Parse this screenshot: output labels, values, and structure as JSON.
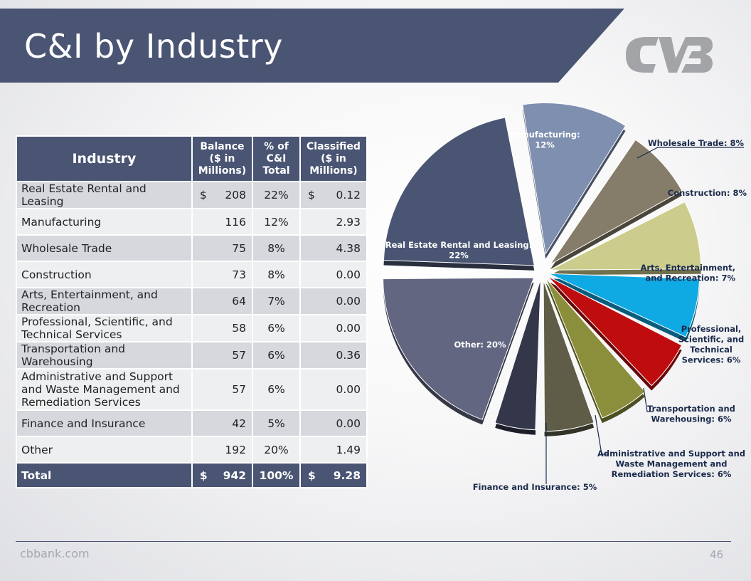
{
  "slide": {
    "title": "C&I by Industry",
    "footer_site": "cbbank.com",
    "page_number": "46",
    "colors": {
      "banner": "#4a5573",
      "logo": "#a3a4a8"
    }
  },
  "table": {
    "headers": {
      "industry": "Industry",
      "balance": [
        "Balance",
        "($ in",
        "Millions)"
      ],
      "pct": [
        "% of",
        "C&I",
        "Total"
      ],
      "classified": [
        "Classified",
        "($ in",
        "Millions)"
      ]
    },
    "rows": [
      {
        "industry": "Real Estate Rental and Leasing",
        "balance": "208",
        "pct": "22%",
        "classified": "0.12",
        "currency": true
      },
      {
        "industry": "Manufacturing",
        "balance": "116",
        "pct": "12%",
        "classified": "2.93"
      },
      {
        "industry": "Wholesale Trade",
        "balance": "75",
        "pct": "8%",
        "classified": "4.38"
      },
      {
        "industry": "Construction",
        "balance": "73",
        "pct": "8%",
        "classified": "0.00"
      },
      {
        "industry": "Arts, Entertainment, and Recreation",
        "balance": "64",
        "pct": "7%",
        "classified": "0.00"
      },
      {
        "industry": "Professional, Scientific, and Technical Services",
        "balance": "58",
        "pct": "6%",
        "classified": "0.00"
      },
      {
        "industry": "Transportation and Warehousing",
        "balance": "57",
        "pct": "6%",
        "classified": "0.36"
      },
      {
        "industry": "Administrative and Support and Waste Management and Remediation Services",
        "balance": "57",
        "pct": "6%",
        "classified": "0.00",
        "tall": true
      },
      {
        "industry": "Finance and Insurance",
        "balance": "42",
        "pct": "5%",
        "classified": "0.00"
      },
      {
        "industry": "Other",
        "balance": "192",
        "pct": "20%",
        "classified": "1.49"
      }
    ],
    "total": {
      "label": "Total",
      "balance": "942",
      "pct": "100%",
      "classified": "9.28"
    },
    "currency_symbol": "$"
  },
  "chart_data": {
    "type": "pie",
    "unit": "% of C&I Total",
    "slices": [
      {
        "label": "Manufacturing: 12%",
        "lines": [
          "Manufacturing:",
          "12%"
        ],
        "value": 12,
        "color": "#7f8fb0",
        "text_color": "#ffffff",
        "label_inside": true
      },
      {
        "label": "Wholesale Trade: 8%",
        "lines": [
          "Wholesale Trade: 8%"
        ],
        "value": 8,
        "color": "#857d69",
        "text_color": "#1b2b4c"
      },
      {
        "label": "Construction: 8%",
        "lines": [
          "Construction: 8%"
        ],
        "value": 8,
        "color": "#cccc8c",
        "text_color": "#1b2b4c"
      },
      {
        "label": "Arts, Entertainment, and Recreation: 7%",
        "lines": [
          "Arts, Entertainment,",
          "and Recreation: 7%"
        ],
        "value": 7,
        "color": "#0fa9e4",
        "text_color": "#1b2b4c"
      },
      {
        "label": "Professional, Scientific, and Technical Services: 6%",
        "lines": [
          "Professional,",
          "Scientific, and",
          "Technical",
          "Services: 6%"
        ],
        "value": 6,
        "color": "#bf0c0e",
        "text_color": "#1b2b4c"
      },
      {
        "label": "Transportation and Warehousing: 6%",
        "lines": [
          "Transportation and",
          "Warehousing: 6%"
        ],
        "value": 6,
        "color": "#8b8f3c",
        "text_color": "#1b2b4c"
      },
      {
        "label": "Administrative and Support and Waste Management and Remediation Services: 6%",
        "lines": [
          "Administrative and Support and",
          "Waste Management and",
          "Remediation Services: 6%"
        ],
        "value": 6,
        "color": "#5f5c48",
        "text_color": "#1b2b4c"
      },
      {
        "label": "Finance and Insurance: 5%",
        "lines": [
          "Finance and Insurance: 5%"
        ],
        "value": 5,
        "color": "#34374a",
        "text_color": "#1b2b4c"
      },
      {
        "label": "Other: 20%",
        "lines": [
          "Other: 20%"
        ],
        "value": 20,
        "color": "#636680",
        "text_color": "#ffffff",
        "label_inside": true
      },
      {
        "label": "Real Estate Rental and Leasing: 22%",
        "lines": [
          "Real Estate Rental and Leasing:",
          "22%"
        ],
        "value": 22,
        "color": "#4a5573",
        "text_color": "#ffffff",
        "label_inside": true
      }
    ]
  }
}
